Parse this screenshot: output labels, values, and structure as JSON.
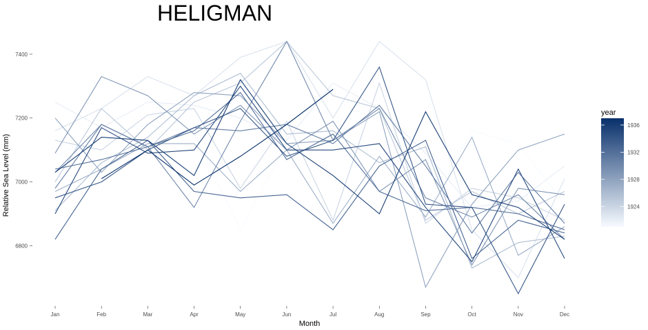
{
  "chart_data": {
    "type": "line",
    "title": "HELIGMAN",
    "xlabel": "Month",
    "ylabel": "Relative Sea Level (mm)",
    "categories": [
      "Jan",
      "Feb",
      "Mar",
      "Apr",
      "May",
      "Jun",
      "Jul",
      "Aug",
      "Sep",
      "Oct",
      "Nov",
      "Dec"
    ],
    "y_ticks": [
      6800,
      7000,
      7200,
      7400
    ],
    "ylim": [
      6620,
      7445
    ],
    "grid": false,
    "legend": {
      "title": "year",
      "position": "right",
      "type": "colorbar",
      "range": [
        1921,
        1937
      ],
      "ticks": [
        1924,
        1928,
        1932,
        1936
      ],
      "color_low": "#f7fbff",
      "color_high": "#08306b"
    },
    "series": [
      {
        "year": 1921,
        "values": [
          7080,
          7150,
          7180,
          7150,
          6850,
          7120,
          7140,
          7100,
          6900,
          7160,
          7120,
          6930
        ]
      },
      {
        "year": 1922,
        "values": [
          7250,
          7170,
          7250,
          7240,
          7200,
          7130,
          7310,
          7230,
          7090,
          6920,
          6940,
          7050
        ]
      },
      {
        "year": 1923,
        "values": [
          7160,
          7230,
          7330,
          7270,
          7390,
          7440,
          7200,
          7440,
          7320,
          6850,
          6700,
          7010
        ]
      },
      {
        "year": 1924,
        "values": [
          7130,
          7100,
          7210,
          7230,
          6980,
          7190,
          6880,
          7310,
          6870,
          6980,
          6950,
          6880
        ]
      },
      {
        "year": 1925,
        "values": [
          7000,
          7230,
          7100,
          7250,
          7310,
          7440,
          7270,
          7230,
          6880,
          6970,
          6900,
          6970
        ]
      },
      {
        "year": 1926,
        "values": [
          6910,
          7060,
          7140,
          7270,
          7340,
          7150,
          7160,
          7060,
          7110,
          6730,
          6810,
          6830
        ]
      },
      {
        "year": 1927,
        "values": [
          6970,
          7040,
          7120,
          7120,
          6970,
          7100,
          6870,
          7080,
          6890,
          7140,
          6770,
          6860
        ]
      },
      {
        "year": 1928,
        "values": [
          7200,
          7030,
          7180,
          7280,
          7270,
          7120,
          7130,
          7220,
          6670,
          6930,
          7100,
          7150
        ]
      },
      {
        "year": 1929,
        "values": [
          7090,
          7330,
          7270,
          7150,
          7240,
          7100,
          7190,
          6970,
          7070,
          6740,
          6980,
          6960
        ]
      },
      {
        "year": 1930,
        "values": [
          7030,
          7180,
          7110,
          6920,
          7190,
          7440,
          7130,
          7230,
          6950,
          6890,
          6960,
          6820
        ]
      },
      {
        "year": 1931,
        "values": [
          6980,
          7180,
          7110,
          7170,
          7160,
          7180,
          7120,
          7240,
          7050,
          6840,
          7030,
          6870
        ]
      },
      {
        "year": 1932,
        "values": [
          7040,
          7070,
          7110,
          7160,
          7280,
          7070,
          7150,
          6970,
          6910,
          6920,
          6900,
          6850
        ]
      },
      {
        "year": 1933,
        "values": [
          6820,
          7040,
          7130,
          6970,
          6950,
          6960,
          6850,
          7050,
          7130,
          6760,
          6880,
          6840
        ]
      },
      {
        "year": 1934,
        "values": [
          6950,
          7000,
          7100,
          7170,
          7230,
          7080,
          7130,
          7360,
          6930,
          6920,
          6650,
          6930
        ]
      },
      {
        "year": 1935,
        "values": [
          6900,
          7170,
          7090,
          7100,
          7300,
          7100,
          7100,
          7120,
          6920,
          6750,
          7040,
          6760
        ]
      },
      {
        "year": 1936,
        "values": [
          7030,
          7140,
          7130,
          7020,
          7320,
          7120,
          7020,
          6900,
          7220,
          6960,
          6920,
          6820
        ]
      },
      {
        "year": 1937,
        "values": [
          null,
          7010,
          7100,
          6990,
          7080,
          7180,
          7290,
          null,
          null,
          null,
          null,
          null
        ]
      }
    ]
  }
}
